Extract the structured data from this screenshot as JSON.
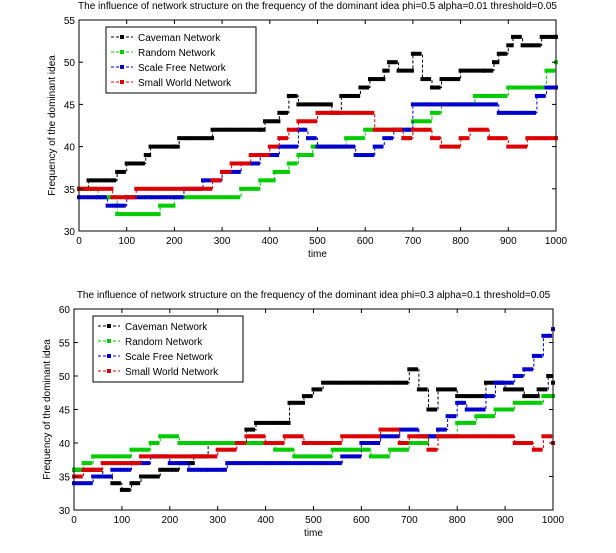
{
  "chart_data": [
    {
      "type": "line",
      "title": "The influence of network structure on the frequency of the dominant idea phi=0.5 alpha=0.01 threshold=0.05",
      "xlabel": "time",
      "ylabel": "Frequency of the dominant idea",
      "xlim": [
        0,
        1000
      ],
      "ylim": [
        30,
        55
      ],
      "xticks": [
        0,
        100,
        200,
        300,
        400,
        500,
        600,
        700,
        800,
        900,
        1000
      ],
      "yticks": [
        30,
        35,
        40,
        45,
        50,
        55
      ],
      "grid": false,
      "legend_position": "top-left",
      "series": [
        {
          "name": "Caveman Network",
          "color": "#000000",
          "points": [
            [
              0,
              35
            ],
            [
              20,
              36
            ],
            [
              60,
              36
            ],
            [
              80,
              37
            ],
            [
              100,
              38
            ],
            [
              120,
              38
            ],
            [
              140,
              39
            ],
            [
              150,
              40
            ],
            [
              200,
              40
            ],
            [
              210,
              41
            ],
            [
              230,
              41
            ],
            [
              280,
              42
            ],
            [
              380,
              42
            ],
            [
              390,
              43
            ],
            [
              420,
              44
            ],
            [
              440,
              46
            ],
            [
              460,
              45
            ],
            [
              500,
              45
            ],
            [
              530,
              44
            ],
            [
              550,
              46
            ],
            [
              590,
              47
            ],
            [
              610,
              48
            ],
            [
              640,
              49
            ],
            [
              650,
              50
            ],
            [
              670,
              49
            ],
            [
              700,
              51
            ],
            [
              720,
              48
            ],
            [
              740,
              47
            ],
            [
              760,
              48
            ],
            [
              800,
              49
            ],
            [
              850,
              49
            ],
            [
              870,
              50
            ],
            [
              880,
              51
            ],
            [
              900,
              52
            ],
            [
              910,
              53
            ],
            [
              930,
              52
            ],
            [
              950,
              52
            ],
            [
              970,
              53
            ],
            [
              1000,
              53
            ]
          ]
        },
        {
          "name": "Random Network",
          "color": "#00cc00",
          "points": [
            [
              0,
              35
            ],
            [
              40,
              34
            ],
            [
              80,
              32
            ],
            [
              100,
              32
            ],
            [
              160,
              32
            ],
            [
              170,
              33
            ],
            [
              200,
              34
            ],
            [
              240,
              34
            ],
            [
              260,
              34
            ],
            [
              300,
              34
            ],
            [
              320,
              34
            ],
            [
              340,
              35
            ],
            [
              380,
              36
            ],
            [
              410,
              37
            ],
            [
              440,
              38
            ],
            [
              460,
              39
            ],
            [
              490,
              40
            ],
            [
              520,
              40
            ],
            [
              560,
              41
            ],
            [
              600,
              42
            ],
            [
              640,
              42
            ],
            [
              680,
              41
            ],
            [
              700,
              43
            ],
            [
              740,
              44
            ],
            [
              760,
              45
            ],
            [
              800,
              45
            ],
            [
              830,
              46
            ],
            [
              880,
              46
            ],
            [
              900,
              47
            ],
            [
              930,
              47
            ],
            [
              960,
              47
            ],
            [
              980,
              49
            ],
            [
              1000,
              50
            ]
          ]
        },
        {
          "name": "Scale Free Network",
          "color": "#0000cc",
          "points": [
            [
              0,
              34
            ],
            [
              40,
              34
            ],
            [
              60,
              33
            ],
            [
              80,
              33
            ],
            [
              100,
              34
            ],
            [
              140,
              34
            ],
            [
              180,
              34
            ],
            [
              220,
              35
            ],
            [
              260,
              36
            ],
            [
              300,
              37
            ],
            [
              340,
              38
            ],
            [
              380,
              39
            ],
            [
              420,
              40
            ],
            [
              460,
              42
            ],
            [
              480,
              41
            ],
            [
              500,
              40
            ],
            [
              540,
              40
            ],
            [
              580,
              39
            ],
            [
              620,
              40
            ],
            [
              640,
              41
            ],
            [
              660,
              42
            ],
            [
              690,
              42
            ],
            [
              700,
              45
            ],
            [
              740,
              45
            ],
            [
              780,
              45
            ],
            [
              820,
              45
            ],
            [
              860,
              45
            ],
            [
              880,
              44
            ],
            [
              900,
              44
            ],
            [
              940,
              44
            ],
            [
              960,
              46
            ],
            [
              980,
              47
            ],
            [
              1000,
              47
            ]
          ]
        },
        {
          "name": "Small World Network",
          "color": "#dd0000",
          "points": [
            [
              0,
              35
            ],
            [
              40,
              35
            ],
            [
              70,
              34
            ],
            [
              100,
              34
            ],
            [
              120,
              35
            ],
            [
              160,
              35
            ],
            [
              200,
              35
            ],
            [
              240,
              35
            ],
            [
              280,
              36
            ],
            [
              300,
              37
            ],
            [
              320,
              38
            ],
            [
              360,
              39
            ],
            [
              400,
              40
            ],
            [
              420,
              41
            ],
            [
              440,
              42
            ],
            [
              460,
              43
            ],
            [
              500,
              44
            ],
            [
              540,
              44
            ],
            [
              580,
              44
            ],
            [
              620,
              42
            ],
            [
              660,
              42
            ],
            [
              680,
              41
            ],
            [
              700,
              42
            ],
            [
              740,
              41
            ],
            [
              760,
              40
            ],
            [
              800,
              41
            ],
            [
              820,
              42
            ],
            [
              860,
              41
            ],
            [
              880,
              41
            ],
            [
              900,
              40
            ],
            [
              940,
              41
            ],
            [
              960,
              41
            ],
            [
              1000,
              41
            ]
          ]
        }
      ]
    },
    {
      "type": "line",
      "title": "The influence of network structure on the frequency of the dominant idea phi=0.3 alpha=0.1 threshold=0.05",
      "xlabel": "time",
      "ylabel": "Frequency of the dominant idea",
      "xlim": [
        0,
        1000
      ],
      "ylim": [
        30,
        60
      ],
      "xticks": [
        0,
        100,
        200,
        300,
        400,
        500,
        600,
        700,
        800,
        900,
        1000
      ],
      "yticks": [
        30,
        35,
        40,
        45,
        50,
        55,
        60
      ],
      "grid": false,
      "legend_position": "top-left",
      "series": [
        {
          "name": "Caveman Network",
          "color": "#000000",
          "points": [
            [
              0,
              36
            ],
            [
              40,
              36
            ],
            [
              60,
              35
            ],
            [
              80,
              34
            ],
            [
              100,
              33
            ],
            [
              120,
              34
            ],
            [
              140,
              35
            ],
            [
              180,
              36
            ],
            [
              220,
              37
            ],
            [
              250,
              38
            ],
            [
              280,
              40
            ],
            [
              320,
              40
            ],
            [
              360,
              42
            ],
            [
              380,
              43
            ],
            [
              420,
              43
            ],
            [
              450,
              46
            ],
            [
              480,
              47
            ],
            [
              500,
              48
            ],
            [
              520,
              49
            ],
            [
              560,
              49
            ],
            [
              600,
              49
            ],
            [
              640,
              49
            ],
            [
              680,
              49
            ],
            [
              700,
              51
            ],
            [
              720,
              48
            ],
            [
              740,
              45
            ],
            [
              760,
              48
            ],
            [
              800,
              47
            ],
            [
              820,
              47
            ],
            [
              860,
              49
            ],
            [
              900,
              48
            ],
            [
              940,
              47
            ],
            [
              970,
              48
            ],
            [
              990,
              50
            ],
            [
              1000,
              49
            ]
          ]
        },
        {
          "name": "Random Network",
          "color": "#00cc00",
          "points": [
            [
              0,
              36
            ],
            [
              20,
              37
            ],
            [
              40,
              38
            ],
            [
              80,
              38
            ],
            [
              120,
              39
            ],
            [
              160,
              40
            ],
            [
              180,
              41
            ],
            [
              220,
              40
            ],
            [
              260,
              40
            ],
            [
              300,
              40
            ],
            [
              340,
              40
            ],
            [
              380,
              40
            ],
            [
              420,
              39
            ],
            [
              460,
              38
            ],
            [
              500,
              38
            ],
            [
              540,
              39
            ],
            [
              580,
              39
            ],
            [
              620,
              38
            ],
            [
              660,
              39
            ],
            [
              700,
              40
            ],
            [
              740,
              41
            ],
            [
              780,
              41
            ],
            [
              800,
              43
            ],
            [
              840,
              44
            ],
            [
              880,
              45
            ],
            [
              920,
              46
            ],
            [
              960,
              46
            ],
            [
              980,
              47
            ],
            [
              1000,
              47
            ]
          ]
        },
        {
          "name": "Scale Free Network",
          "color": "#0000cc",
          "points": [
            [
              0,
              34
            ],
            [
              40,
              35
            ],
            [
              80,
              36
            ],
            [
              120,
              37
            ],
            [
              160,
              38
            ],
            [
              200,
              37
            ],
            [
              240,
              36
            ],
            [
              280,
              36
            ],
            [
              320,
              37
            ],
            [
              360,
              37
            ],
            [
              400,
              37
            ],
            [
              440,
              37
            ],
            [
              480,
              37
            ],
            [
              520,
              37
            ],
            [
              560,
              38
            ],
            [
              600,
              40
            ],
            [
              640,
              41
            ],
            [
              680,
              42
            ],
            [
              720,
              41
            ],
            [
              760,
              42
            ],
            [
              780,
              44
            ],
            [
              800,
              46
            ],
            [
              820,
              45
            ],
            [
              860,
              47
            ],
            [
              880,
              49
            ],
            [
              900,
              49
            ],
            [
              920,
              50
            ],
            [
              940,
              51
            ],
            [
              960,
              53
            ],
            [
              980,
              56
            ],
            [
              1000,
              57
            ]
          ]
        },
        {
          "name": "Small World Network",
          "color": "#dd0000",
          "points": [
            [
              0,
              35
            ],
            [
              20,
              36
            ],
            [
              60,
              37
            ],
            [
              100,
              37
            ],
            [
              140,
              38
            ],
            [
              180,
              38
            ],
            [
              220,
              38
            ],
            [
              260,
              38
            ],
            [
              300,
              39
            ],
            [
              340,
              40
            ],
            [
              360,
              41
            ],
            [
              400,
              40
            ],
            [
              440,
              41
            ],
            [
              480,
              40
            ],
            [
              520,
              40
            ],
            [
              560,
              41
            ],
            [
              600,
              41
            ],
            [
              640,
              42
            ],
            [
              680,
              40
            ],
            [
              700,
              41
            ],
            [
              740,
              39
            ],
            [
              760,
              41
            ],
            [
              800,
              41
            ],
            [
              840,
              41
            ],
            [
              880,
              41
            ],
            [
              920,
              40
            ],
            [
              940,
              40
            ],
            [
              960,
              39
            ],
            [
              980,
              41
            ],
            [
              1000,
              40
            ]
          ]
        }
      ]
    }
  ]
}
